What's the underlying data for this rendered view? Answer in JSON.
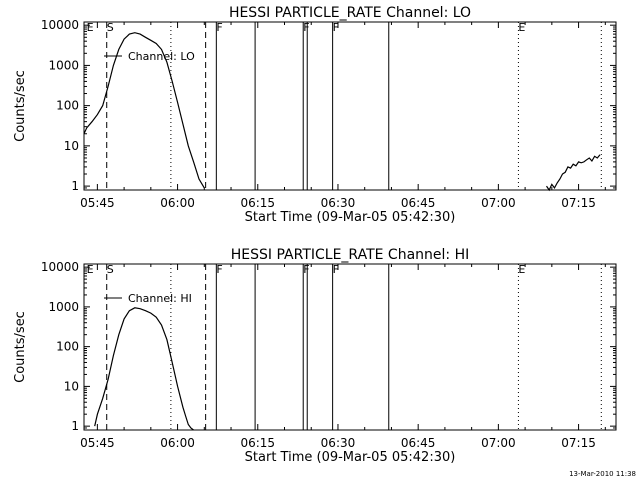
{
  "chart_data": [
    {
      "type": "line",
      "title": "HESSI PARTICLE_RATE Channel: LO",
      "xlabel": "Start Time (09-Mar-05 05:42:30)",
      "ylabel": "Counts/sec",
      "x_tick_labels": [
        "05:45",
        "06:00",
        "06:15",
        "06:30",
        "06:45",
        "07:00",
        "07:15"
      ],
      "y_tick_labels": [
        "1",
        "10",
        "100",
        "1000",
        "10000"
      ],
      "xlim": [
        "05:42:30",
        "07:22:00"
      ],
      "ylim": [
        0.8,
        12000
      ],
      "y_scale": "log",
      "legend": {
        "label": "Channel: LO",
        "placement": "upper-left"
      },
      "flags": [
        {
          "label": "E",
          "time": "05:43:00",
          "style": "none"
        },
        {
          "label": "S",
          "time": "05:46:45",
          "style": "none"
        },
        {
          "label": "",
          "time": "05:46:45",
          "style": "dashed"
        },
        {
          "label": "",
          "time": "05:58:45",
          "style": "dotted"
        },
        {
          "label": "",
          "time": "06:05:15",
          "style": "dashed"
        },
        {
          "label": "F",
          "time": "06:07:15",
          "style": "solid"
        },
        {
          "label": "",
          "time": "06:14:30",
          "style": "solid"
        },
        {
          "label": "F",
          "time": "06:23:30",
          "style": "solid"
        },
        {
          "label": "",
          "time": "06:24:15",
          "style": "solid"
        },
        {
          "label": "F",
          "time": "06:29:00",
          "style": "solid"
        },
        {
          "label": "",
          "time": "06:39:30",
          "style": "solid"
        },
        {
          "label": "E",
          "time": "07:03:45",
          "style": "dotted"
        },
        {
          "label": "",
          "time": "07:19:15",
          "style": "dotted"
        }
      ],
      "series": [
        {
          "name": "Channel: LO",
          "x": [
            "05:42:30",
            "05:43:00",
            "05:44:00",
            "05:45:00",
            "05:46:00",
            "05:47:00",
            "05:48:00",
            "05:49:00",
            "05:50:00",
            "05:51:00",
            "05:52:00",
            "05:53:00",
            "05:54:00",
            "05:55:00",
            "05:56:00",
            "05:57:00",
            "05:58:00",
            "05:59:00",
            "06:00:00",
            "06:01:00",
            "06:02:00",
            "06:03:00",
            "06:04:00",
            "06:05:00"
          ],
          "y": [
            20,
            28,
            40,
            60,
            100,
            300,
            1000,
            2500,
            4500,
            6000,
            6500,
            6000,
            5000,
            4200,
            3500,
            2500,
            1200,
            400,
            120,
            35,
            10,
            4,
            1.5,
            0.9
          ]
        },
        {
          "name": "",
          "x": [
            "07:09:00",
            "07:09:30",
            "07:10:00",
            "07:10:30",
            "07:11:00",
            "07:11:30",
            "07:12:00",
            "07:12:30",
            "07:13:00",
            "07:13:30",
            "07:14:00",
            "07:14:30",
            "07:15:00",
            "07:15:30",
            "07:16:00",
            "07:16:30",
            "07:17:00",
            "07:17:30",
            "07:18:00",
            "07:18:30",
            "07:19:00"
          ],
          "y": [
            1,
            0.8,
            1.1,
            0.9,
            1.2,
            1.5,
            2,
            2.2,
            3,
            2.8,
            3.5,
            3.2,
            4,
            3.8,
            4,
            4.5,
            5,
            4.2,
            5.5,
            5,
            6
          ]
        }
      ]
    },
    {
      "type": "line",
      "title": "HESSI PARTICLE_RATE Channel: HI",
      "xlabel": "Start Time (09-Mar-05 05:42:30)",
      "ylabel": "Counts/sec",
      "x_tick_labels": [
        "05:45",
        "06:00",
        "06:15",
        "06:30",
        "06:45",
        "07:00",
        "07:15"
      ],
      "y_tick_labels": [
        "1",
        "10",
        "100",
        "1000",
        "10000"
      ],
      "xlim": [
        "05:42:30",
        "07:22:00"
      ],
      "ylim": [
        0.8,
        12000
      ],
      "y_scale": "log",
      "legend": {
        "label": "Channel: HI",
        "placement": "upper-left"
      },
      "flags": [
        {
          "label": "E",
          "time": "05:43:00",
          "style": "none"
        },
        {
          "label": "S",
          "time": "05:46:45",
          "style": "none"
        },
        {
          "label": "",
          "time": "05:46:45",
          "style": "dashed"
        },
        {
          "label": "",
          "time": "05:58:45",
          "style": "dotted"
        },
        {
          "label": "",
          "time": "06:05:15",
          "style": "dashed"
        },
        {
          "label": "F",
          "time": "06:07:15",
          "style": "solid"
        },
        {
          "label": "",
          "time": "06:14:30",
          "style": "solid"
        },
        {
          "label": "F",
          "time": "06:23:30",
          "style": "solid"
        },
        {
          "label": "",
          "time": "06:24:15",
          "style": "solid"
        },
        {
          "label": "F",
          "time": "06:29:00",
          "style": "solid"
        },
        {
          "label": "",
          "time": "06:39:30",
          "style": "solid"
        },
        {
          "label": "E",
          "time": "07:03:45",
          "style": "dotted"
        },
        {
          "label": "",
          "time": "07:19:15",
          "style": "dotted"
        }
      ],
      "series": [
        {
          "name": "Channel: HI",
          "x": [
            "05:44:30",
            "05:45:00",
            "05:46:00",
            "05:47:00",
            "05:48:00",
            "05:49:00",
            "05:50:00",
            "05:51:00",
            "05:52:00",
            "05:53:00",
            "05:54:00",
            "05:55:00",
            "05:56:00",
            "05:57:00",
            "05:58:00",
            "05:59:00",
            "06:00:00",
            "06:01:00",
            "06:01:30",
            "06:02:00",
            "06:02:30",
            "06:03:00"
          ],
          "y": [
            1,
            2,
            5,
            15,
            60,
            200,
            500,
            800,
            950,
            900,
            800,
            700,
            550,
            350,
            150,
            40,
            10,
            3,
            1.8,
            1.1,
            0.9,
            0.8
          ]
        }
      ]
    }
  ],
  "footer": {
    "timestamp": "13-Mar-2010 11:38"
  }
}
